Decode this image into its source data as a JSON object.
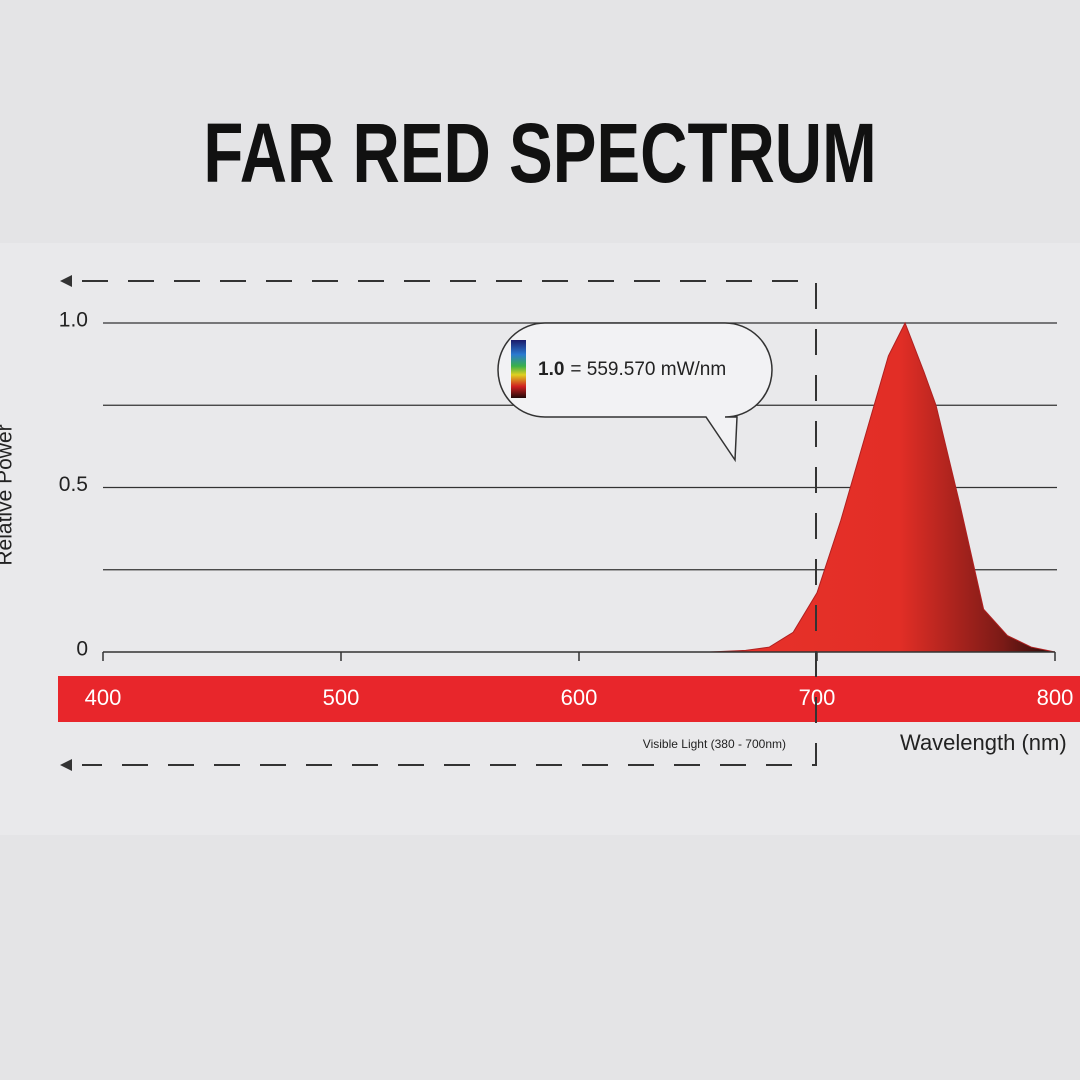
{
  "chart_data": {
    "type": "area",
    "title": "FAR RED SPECTRUM",
    "ylabel": "Relative Power",
    "xlabel": "Wavelength (nm)",
    "annotation": {
      "bold": "1.0",
      "text": "= 559.570 mW/nm"
    },
    "band_label": "Visible Light (380 - 700nm)",
    "x": [
      655,
      670,
      680,
      690,
      700,
      710,
      720,
      730,
      737,
      745,
      750,
      760,
      770,
      780,
      790,
      800
    ],
    "values": [
      0,
      0.005,
      0.015,
      0.06,
      0.18,
      0.4,
      0.65,
      0.9,
      1.0,
      0.85,
      0.75,
      0.45,
      0.13,
      0.05,
      0.015,
      0
    ],
    "color": "#e8322b",
    "xlim": [
      400,
      800
    ],
    "xticks": [
      400,
      500,
      600,
      700,
      800
    ],
    "ylim": [
      0,
      1
    ],
    "yticks": [
      0,
      0.5,
      {
        "value": 1,
        "label": "1.0"
      }
    ],
    "ygrid": [
      0.25,
      0.5,
      0.75,
      1
    ]
  }
}
